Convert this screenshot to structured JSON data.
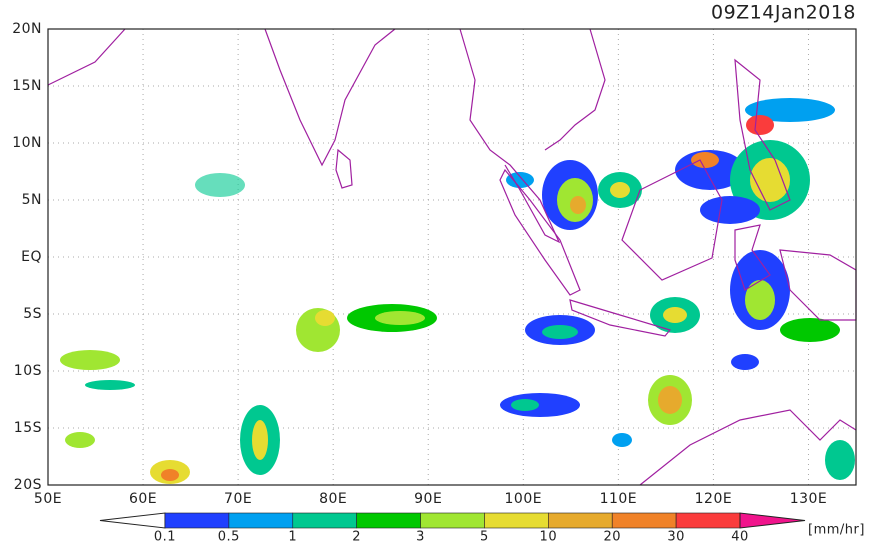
{
  "title": "09Z14Jan2018",
  "lat_labels": [
    "20N",
    "15N",
    "10N",
    "5N",
    "EQ",
    "5S",
    "10S",
    "15S",
    "20S"
  ],
  "lon_labels": [
    "50E",
    "60E",
    "70E",
    "80E",
    "90E",
    "100E",
    "110E",
    "120E",
    "130E"
  ],
  "colorbar": {
    "labels": [
      "0.1",
      "0.5",
      "1",
      "2",
      "3",
      "5",
      "10",
      "20",
      "30",
      "40"
    ],
    "colors": [
      "#ffffff",
      "#2040ff",
      "#00a0f0",
      "#00c890",
      "#00c800",
      "#a0e632",
      "#e6dc32",
      "#e6aa2d",
      "#f08228",
      "#fa3c3c",
      "#f0148c"
    ],
    "unit": "[mm/hr]"
  }
}
